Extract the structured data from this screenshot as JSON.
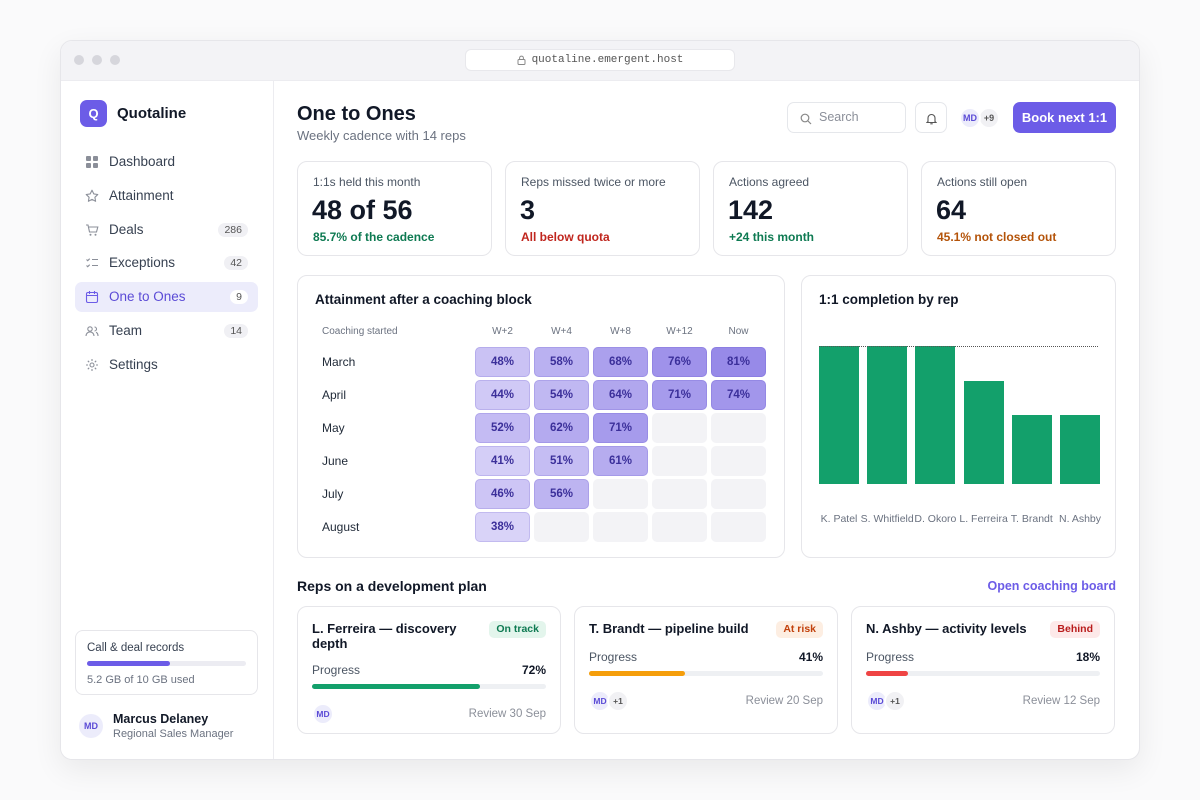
{
  "browser": {
    "url": "quotaline.emergent.host"
  },
  "sidebar": {
    "logo": "Q",
    "brand": "Quotaline",
    "nav": [
      {
        "label": "Dashboard"
      },
      {
        "label": "Attainment"
      },
      {
        "label": "Deals",
        "count": 286
      },
      {
        "label": "Exceptions",
        "count": 42
      },
      {
        "label": "One to Ones",
        "count": 9,
        "active": true
      },
      {
        "label": "Team",
        "count": 14
      },
      {
        "label": "Settings"
      }
    ],
    "storage": {
      "label": "Call & deal records",
      "used": 5.2,
      "total": 10,
      "caption": "5.2 GB of 10 GB used",
      "color": "#6c5ce7"
    },
    "user": {
      "initials": "MD",
      "name": "Marcus Delaney",
      "role": "Regional Sales Manager"
    }
  },
  "header": {
    "title": "One to Ones",
    "subtitle": "Weekly cadence with 14 reps",
    "search_placeholder": "Search",
    "avatars": [
      "MD",
      "+9"
    ],
    "button": "Book next 1:1"
  },
  "kpis": [
    {
      "label": "1:1s held this month",
      "value": "48 of 56",
      "note": "85.7% of the cadence",
      "note_color": "#0e7a52"
    },
    {
      "label": "Reps missed twice or more",
      "value": 3,
      "note": "All below quota",
      "note_color": "#c0261e"
    },
    {
      "label": "Actions agreed",
      "value": 142,
      "note": "+24 this month",
      "note_color": "#0e7a52"
    },
    {
      "label": "Actions still open",
      "value": 64,
      "note": "45.1% not closed out",
      "note_color": "#b45309"
    }
  ],
  "heatmap": {
    "title": "Attainment after a coaching block",
    "row_header": "Coaching started",
    "columns": [
      "W+2",
      "W+4",
      "W+8",
      "W+12",
      "Now"
    ],
    "color_low": "#d9d3f8",
    "color_high": "#978ae8",
    "rows": [
      {
        "label": "March",
        "values": [
          48,
          58,
          68,
          76,
          81
        ],
        "value_labels": [
          "48%",
          "58%",
          "68%",
          "76%",
          "81%"
        ]
      },
      {
        "label": "April",
        "values": [
          44,
          54,
          64,
          71,
          74
        ],
        "value_labels": [
          "44%",
          "54%",
          "64%",
          "71%",
          "74%"
        ]
      },
      {
        "label": "May",
        "values": [
          52,
          62,
          71,
          null,
          null
        ],
        "value_labels": [
          "52%",
          "62%",
          "71%",
          null,
          null
        ]
      },
      {
        "label": "June",
        "values": [
          41,
          51,
          61,
          null,
          null
        ],
        "value_labels": [
          "41%",
          "51%",
          "61%",
          null,
          null
        ]
      },
      {
        "label": "July",
        "values": [
          46,
          56,
          null,
          null,
          null
        ],
        "value_labels": [
          "46%",
          "56%",
          null,
          null,
          null
        ]
      },
      {
        "label": "August",
        "values": [
          38,
          null,
          null,
          null,
          null
        ],
        "value_labels": [
          "38%",
          null,
          null,
          null,
          null
        ]
      }
    ]
  },
  "completion_chart": {
    "type": "bar",
    "title": "1:1 completion by rep",
    "categories": [
      "K. Patel",
      "S. Whitfield",
      "D. Okoro",
      "L. Ferreira",
      "T. Brandt",
      "N. Ashby"
    ],
    "values": [
      4,
      4,
      4,
      3,
      2,
      2
    ],
    "ylim": [
      0,
      4
    ],
    "target": 4,
    "color": "#13a06b"
  },
  "plans": {
    "title": "Reps on a development plan",
    "link": "Open coaching board",
    "cards": [
      {
        "title": "L. Ferreira — discovery depth",
        "status": "On track",
        "status_color": "#0e7a52",
        "status_bg": "#e3f5ec",
        "progress_text": "Progress",
        "progress": 72,
        "progress_label": "72%",
        "bar_color": "#13a06b",
        "avatars": [
          "MD"
        ],
        "review": "Review 30 Sep"
      },
      {
        "title": "T. Brandt — pipeline build",
        "status": "At risk",
        "status_color": "#c2410c",
        "status_bg": "#fdeee2",
        "progress_text": "Progress",
        "progress": 41,
        "progress_label": "41%",
        "bar_color": "#f59e0b",
        "avatars": [
          "MD",
          "+1"
        ],
        "review": "Review 20 Sep"
      },
      {
        "title": "N. Ashby — activity levels",
        "status": "Behind",
        "status_color": "#b91c1c",
        "status_bg": "#fde9e9",
        "progress_text": "Progress",
        "progress": 18,
        "progress_label": "18%",
        "bar_color": "#ef4444",
        "avatars": [
          "MD",
          "+1"
        ],
        "review": "Review 12 Sep"
      }
    ]
  }
}
